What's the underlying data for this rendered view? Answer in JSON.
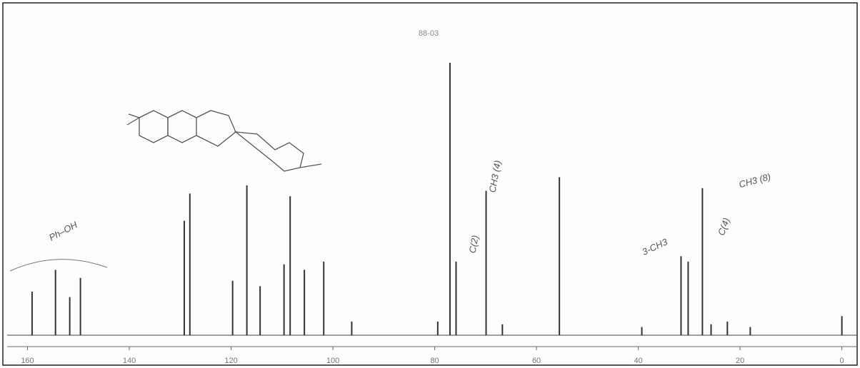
{
  "chart_data": {
    "type": "stem",
    "title": "88-03",
    "xlim": [
      164,
      -3
    ],
    "xticks": [
      160,
      140,
      120,
      100,
      80,
      60,
      40,
      20,
      0
    ],
    "ylim": [
      0,
      100
    ],
    "color": "#333333",
    "series": [
      {
        "name": null,
        "color": "#333333",
        "x": [
          159.1,
          154.5,
          151.7,
          149.6,
          129.2,
          128.1,
          119.7,
          116.9,
          114.3,
          109.6,
          108.4,
          105.6,
          101.8,
          96.3,
          79.4,
          77.0,
          75.8,
          69.9,
          66.7,
          55.5,
          39.3,
          31.6,
          30.2,
          27.4,
          25.7,
          22.5,
          18.0,
          0
        ],
        "values": [
          16,
          24,
          14,
          21,
          42,
          52,
          20,
          55,
          18,
          26,
          51,
          24,
          27,
          5,
          5,
          100,
          27,
          53,
          4,
          58,
          3,
          29,
          27,
          54,
          4,
          5,
          3,
          7
        ]
      }
    ],
    "annotations": [
      "Ph–OH",
      "C(2)",
      "CH3 (4)",
      "3-CH3",
      "C(4)",
      "CH3 (8)"
    ]
  }
}
